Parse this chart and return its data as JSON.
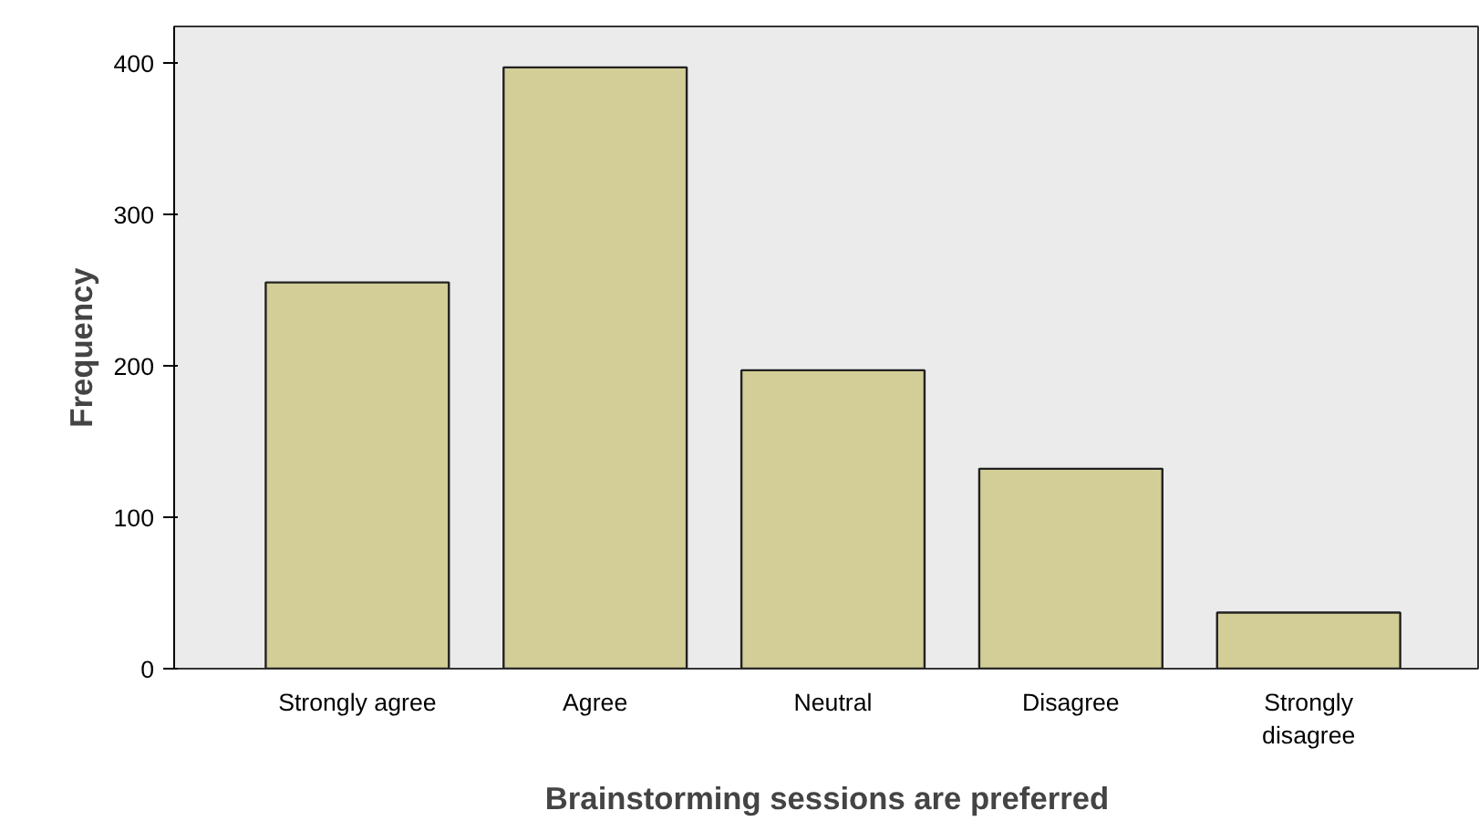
{
  "chart_data": {
    "type": "bar",
    "xlabel": "Brainstorming sessions are preferred",
    "ylabel": "Frequency",
    "categories": [
      "Strongly agree",
      "Agree",
      "Neutral",
      "Disagree",
      "Strongly disagree"
    ],
    "values": [
      255,
      397,
      197,
      132,
      37
    ],
    "color": "#d3ce97",
    "ylim": [
      0,
      424
    ],
    "yticks": [
      0,
      100,
      200,
      300,
      400
    ],
    "grid": false
  }
}
